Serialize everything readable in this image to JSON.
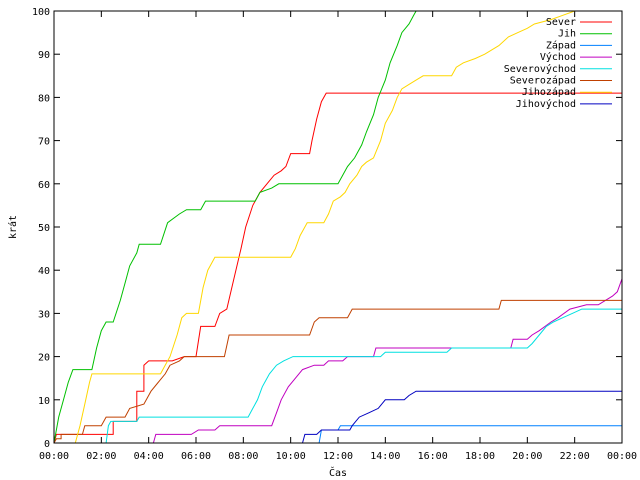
{
  "chart_data": {
    "type": "line",
    "title": "",
    "xlabel": "Čas",
    "ylabel": "krát",
    "xlim": [
      0,
      24
    ],
    "ylim": [
      0,
      100
    ],
    "grid": false,
    "legend_position": "top-right",
    "x_tick_labels": [
      "00:00",
      "02:00",
      "04:00",
      "06:00",
      "08:00",
      "10:00",
      "12:00",
      "14:00",
      "16:00",
      "18:00",
      "20:00",
      "22:00",
      "00:00"
    ],
    "y_ticks": [
      0,
      10,
      20,
      30,
      40,
      50,
      60,
      70,
      80,
      90,
      100
    ],
    "series": [
      {
        "name": "Sever",
        "color": "#ff0000",
        "points": [
          [
            0,
            0
          ],
          [
            0.1,
            2
          ],
          [
            2.5,
            2
          ],
          [
            2.5,
            5
          ],
          [
            3.5,
            5
          ],
          [
            3.5,
            12
          ],
          [
            3.8,
            12
          ],
          [
            3.8,
            18
          ],
          [
            4,
            19
          ],
          [
            5,
            19
          ],
          [
            5.5,
            20
          ],
          [
            6,
            20
          ],
          [
            6.2,
            27
          ],
          [
            6.8,
            27
          ],
          [
            7,
            30
          ],
          [
            7.3,
            31
          ],
          [
            7.6,
            38
          ],
          [
            7.9,
            45
          ],
          [
            8.1,
            50
          ],
          [
            8.4,
            55
          ],
          [
            8.7,
            58
          ],
          [
            9,
            60
          ],
          [
            9.3,
            62
          ],
          [
            9.6,
            63
          ],
          [
            9.8,
            64
          ],
          [
            10,
            67
          ],
          [
            10.8,
            67
          ],
          [
            10.9,
            70
          ],
          [
            11.1,
            75
          ],
          [
            11.3,
            79
          ],
          [
            11.5,
            81
          ],
          [
            24,
            81
          ]
        ]
      },
      {
        "name": "Jih",
        "color": "#00c000",
        "points": [
          [
            0,
            0
          ],
          [
            0.2,
            6
          ],
          [
            0.4,
            10
          ],
          [
            0.6,
            14
          ],
          [
            0.8,
            17
          ],
          [
            1.6,
            17
          ],
          [
            1.8,
            22
          ],
          [
            2,
            26
          ],
          [
            2.2,
            28
          ],
          [
            2.5,
            28
          ],
          [
            2.8,
            33
          ],
          [
            3,
            37
          ],
          [
            3.2,
            41
          ],
          [
            3.5,
            44
          ],
          [
            3.6,
            46
          ],
          [
            4.5,
            46
          ],
          [
            4.8,
            51
          ],
          [
            5.3,
            53
          ],
          [
            5.6,
            54
          ],
          [
            6.2,
            54
          ],
          [
            6.4,
            56
          ],
          [
            8.5,
            56
          ],
          [
            8.7,
            58
          ],
          [
            9.2,
            59
          ],
          [
            9.5,
            60
          ],
          [
            12,
            60
          ],
          [
            12.2,
            62
          ],
          [
            12.4,
            64
          ],
          [
            12.7,
            66
          ],
          [
            13,
            69
          ],
          [
            13.2,
            72
          ],
          [
            13.5,
            76
          ],
          [
            13.7,
            80
          ],
          [
            14,
            84
          ],
          [
            14.2,
            88
          ],
          [
            14.5,
            92
          ],
          [
            14.7,
            95
          ],
          [
            15,
            97
          ],
          [
            15.2,
            99
          ],
          [
            15.3,
            100
          ]
        ]
      },
      {
        "name": "Západ",
        "color": "#0080ff",
        "points": [
          [
            0,
            0
          ],
          [
            11.2,
            0
          ],
          [
            11.3,
            3
          ],
          [
            12,
            3
          ],
          [
            12.1,
            4
          ],
          [
            24,
            4
          ]
        ]
      },
      {
        "name": "Východ",
        "color": "#c000c0",
        "points": [
          [
            0,
            0
          ],
          [
            4.2,
            0
          ],
          [
            4.3,
            2
          ],
          [
            5.8,
            2
          ],
          [
            6.1,
            3
          ],
          [
            6.8,
            3
          ],
          [
            7,
            4
          ],
          [
            9.2,
            4
          ],
          [
            9.4,
            7
          ],
          [
            9.6,
            10
          ],
          [
            9.9,
            13
          ],
          [
            10.2,
            15
          ],
          [
            10.5,
            17
          ],
          [
            11,
            18
          ],
          [
            11.4,
            18
          ],
          [
            11.6,
            19
          ],
          [
            12.2,
            19
          ],
          [
            12.4,
            20
          ],
          [
            13.5,
            20
          ],
          [
            13.6,
            22
          ],
          [
            16.5,
            22
          ],
          [
            16.6,
            22
          ],
          [
            19.3,
            22
          ],
          [
            19.4,
            24
          ],
          [
            20,
            24
          ],
          [
            20.2,
            25
          ],
          [
            20.5,
            26
          ],
          [
            21,
            28
          ],
          [
            21.3,
            29
          ],
          [
            21.8,
            31
          ],
          [
            22.5,
            32
          ],
          [
            23,
            32
          ],
          [
            23.3,
            33
          ],
          [
            23.6,
            34
          ],
          [
            23.8,
            35
          ],
          [
            24,
            38
          ]
        ]
      },
      {
        "name": "Severovýchod",
        "color": "#00e0e0",
        "points": [
          [
            0,
            0
          ],
          [
            2.2,
            0
          ],
          [
            2.3,
            4
          ],
          [
            2.4,
            5
          ],
          [
            3.5,
            5
          ],
          [
            3.6,
            6
          ],
          [
            8.2,
            6
          ],
          [
            8.4,
            8
          ],
          [
            8.6,
            10
          ],
          [
            8.8,
            13
          ],
          [
            9.1,
            16
          ],
          [
            9.4,
            18
          ],
          [
            9.7,
            19
          ],
          [
            10.1,
            20
          ],
          [
            13.8,
            20
          ],
          [
            14,
            21
          ],
          [
            16.6,
            21
          ],
          [
            16.8,
            22
          ],
          [
            20,
            22
          ],
          [
            20.2,
            23
          ],
          [
            20.5,
            25
          ],
          [
            20.8,
            27
          ],
          [
            21.1,
            28
          ],
          [
            21.5,
            29
          ],
          [
            21.9,
            30
          ],
          [
            22.3,
            31
          ],
          [
            24,
            31
          ]
        ]
      },
      {
        "name": "Severozápad",
        "color": "#c04000",
        "points": [
          [
            0,
            0
          ],
          [
            0.1,
            1
          ],
          [
            0.3,
            1
          ],
          [
            0.3,
            2
          ],
          [
            1.2,
            2
          ],
          [
            1.3,
            4
          ],
          [
            2,
            4
          ],
          [
            2.2,
            6
          ],
          [
            3,
            6
          ],
          [
            3.2,
            8
          ],
          [
            3.8,
            9
          ],
          [
            4.1,
            12
          ],
          [
            4.4,
            14
          ],
          [
            4.7,
            16
          ],
          [
            4.9,
            18
          ],
          [
            5.3,
            19
          ],
          [
            5.5,
            20
          ],
          [
            7.2,
            20
          ],
          [
            7.4,
            25
          ],
          [
            10.8,
            25
          ],
          [
            11,
            28
          ],
          [
            11.2,
            29
          ],
          [
            12.4,
            29
          ],
          [
            12.6,
            31
          ],
          [
            18.8,
            31
          ],
          [
            18.9,
            33
          ],
          [
            24,
            33
          ]
        ]
      },
      {
        "name": "Jihozápad",
        "color": "#ffd700",
        "points": [
          [
            0,
            0
          ],
          [
            0.9,
            0
          ],
          [
            1.1,
            4
          ],
          [
            1.3,
            9
          ],
          [
            1.5,
            14
          ],
          [
            1.6,
            16
          ],
          [
            4.5,
            16
          ],
          [
            4.7,
            18
          ],
          [
            4.9,
            20
          ],
          [
            5.2,
            25
          ],
          [
            5.4,
            29
          ],
          [
            5.6,
            30
          ],
          [
            6.1,
            30
          ],
          [
            6.3,
            36
          ],
          [
            6.5,
            40
          ],
          [
            6.8,
            43
          ],
          [
            10,
            43
          ],
          [
            10.2,
            45
          ],
          [
            10.4,
            48
          ],
          [
            10.7,
            51
          ],
          [
            11.4,
            51
          ],
          [
            11.6,
            53
          ],
          [
            11.8,
            56
          ],
          [
            12.1,
            57
          ],
          [
            12.3,
            58
          ],
          [
            12.5,
            60
          ],
          [
            12.8,
            62
          ],
          [
            13,
            64
          ],
          [
            13.2,
            65
          ],
          [
            13.5,
            66
          ],
          [
            13.8,
            70
          ],
          [
            14,
            74
          ],
          [
            14.3,
            77
          ],
          [
            14.5,
            80
          ],
          [
            14.7,
            82
          ],
          [
            15,
            83
          ],
          [
            15.3,
            84
          ],
          [
            15.6,
            85
          ],
          [
            16.8,
            85
          ],
          [
            17,
            87
          ],
          [
            17.3,
            88
          ],
          [
            17.8,
            89
          ],
          [
            18.2,
            90
          ],
          [
            18.8,
            92
          ],
          [
            19.2,
            94
          ],
          [
            19.6,
            95
          ],
          [
            20,
            96
          ],
          [
            20.3,
            97
          ],
          [
            21,
            98
          ],
          [
            21.5,
            99
          ],
          [
            22,
            100
          ]
        ]
      },
      {
        "name": "Jihovýchod",
        "color": "#0000c0",
        "points": [
          [
            0,
            0
          ],
          [
            10.5,
            0
          ],
          [
            10.6,
            2
          ],
          [
            11.1,
            2
          ],
          [
            11.3,
            3
          ],
          [
            12.5,
            3
          ],
          [
            12.6,
            4
          ],
          [
            12.9,
            6
          ],
          [
            13.3,
            7
          ],
          [
            13.7,
            8
          ],
          [
            14,
            10
          ],
          [
            14.8,
            10
          ],
          [
            15,
            11
          ],
          [
            15.3,
            12
          ],
          [
            24,
            12
          ]
        ]
      }
    ]
  }
}
